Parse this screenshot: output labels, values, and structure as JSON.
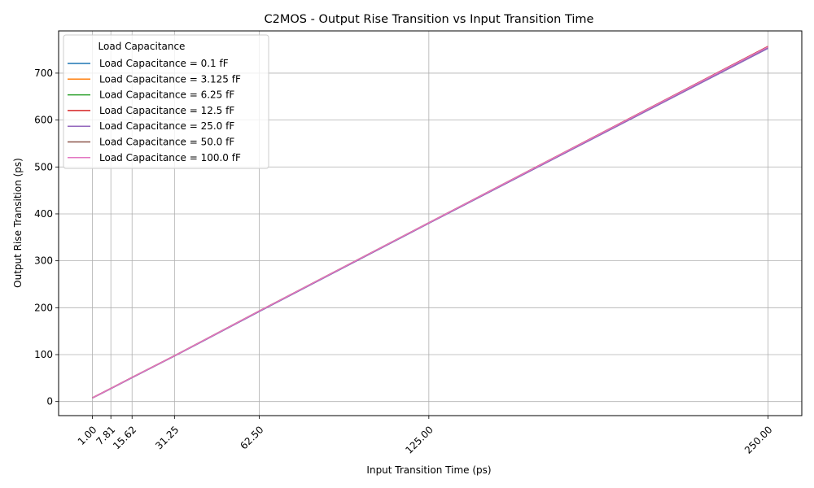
{
  "chart_data": {
    "type": "line",
    "title": "C2MOS - Output Rise Transition vs Input Transition Time",
    "xlabel": "Input Transition Time (ps)",
    "ylabel": "Output Rise Transition (ps)",
    "x": [
      1.0,
      7.81,
      15.62,
      31.25,
      62.5,
      125.0,
      250.0
    ],
    "x_tick_labels": [
      "1.00",
      "7.81",
      "15.62",
      "31.25",
      "62.50",
      "125.00",
      "250.00"
    ],
    "xlim": [
      -11.45,
      262.45
    ],
    "y_ticks": [
      0,
      100,
      200,
      300,
      400,
      500,
      600,
      700
    ],
    "ylim": [
      -30,
      790
    ],
    "grid": true,
    "legend": {
      "title": "Load Capacitance",
      "placement": "top-left"
    },
    "series": [
      {
        "name": "Load Capacitance = 0.1 fF",
        "color": "#1f77b4",
        "values": [
          7.5,
          27.5,
          51.0,
          97.0,
          192.0,
          380.0,
          753.0
        ]
      },
      {
        "name": "Load Capacitance = 3.125 fF",
        "color": "#ff7f0e",
        "values": [
          7.8,
          28.0,
          51.5,
          97.5,
          193.0,
          381.0,
          756.0
        ]
      },
      {
        "name": "Load Capacitance = 6.25 fF",
        "color": "#2ca02c",
        "values": [
          7.8,
          28.0,
          51.5,
          97.5,
          193.0,
          381.0,
          756.0
        ]
      },
      {
        "name": "Load Capacitance = 12.5 fF",
        "color": "#d62728",
        "values": [
          7.8,
          28.0,
          51.5,
          97.5,
          193.0,
          381.0,
          757.0
        ]
      },
      {
        "name": "Load Capacitance = 25.0 fF",
        "color": "#9467bd",
        "values": [
          7.5,
          27.5,
          51.0,
          97.0,
          192.0,
          380.0,
          753.0
        ]
      },
      {
        "name": "Load Capacitance = 50.0 fF",
        "color": "#8c564b",
        "values": [
          7.8,
          28.0,
          51.5,
          97.5,
          193.0,
          381.0,
          756.0
        ]
      },
      {
        "name": "Load Capacitance = 100.0 fF",
        "color": "#e377c2",
        "values": [
          7.8,
          28.0,
          51.5,
          97.5,
          193.0,
          381.0,
          756.0
        ]
      }
    ]
  }
}
